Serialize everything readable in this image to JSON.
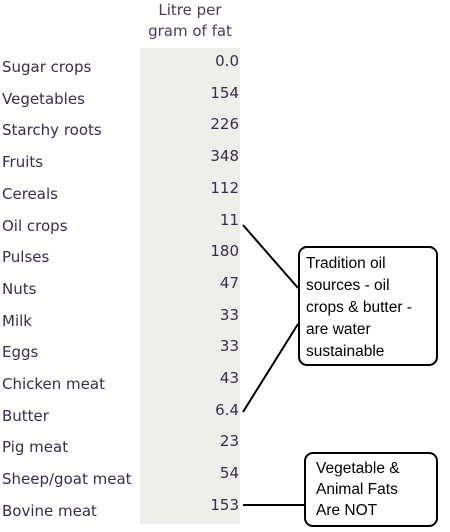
{
  "chart_data": {
    "type": "table",
    "column_header": [
      "Litre per",
      "gram of fat"
    ],
    "rows": [
      {
        "label": "Sugar crops",
        "value": "0.0"
      },
      {
        "label": "Vegetables",
        "value": "154"
      },
      {
        "label": "Starchy roots",
        "value": "226"
      },
      {
        "label": "Fruits",
        "value": "348"
      },
      {
        "label": "Cereals",
        "value": "112"
      },
      {
        "label": "Oil crops",
        "value": "11"
      },
      {
        "label": "Pulses",
        "value": "180"
      },
      {
        "label": "Nuts",
        "value": "47"
      },
      {
        "label": "Milk",
        "value": "33"
      },
      {
        "label": "Eggs",
        "value": "33"
      },
      {
        "label": "Chicken meat",
        "value": "43"
      },
      {
        "label": "Butter",
        "value": "6.4"
      },
      {
        "label": "Pig meat",
        "value": "23"
      },
      {
        "label": "Sheep/goat meat",
        "value": "54"
      },
      {
        "label": "Bovine meat",
        "value": "153"
      }
    ],
    "annotations": [
      {
        "lines": [
          "Tradition oil",
          "sources - oil",
          "crops & butter -",
          "are water",
          "sustainable"
        ],
        "points_to": [
          "Oil crops",
          "Butter"
        ]
      },
      {
        "lines": [
          "Vegetable &",
          "Animal Fats",
          "Are NOT"
        ],
        "points_to": [
          "Bovine meat"
        ]
      }
    ]
  },
  "colors": {
    "text": "#3a2c4c",
    "header_text": "#4b3a5e",
    "value_column_bg": "#eeeeea",
    "callout_border": "#000000"
  }
}
